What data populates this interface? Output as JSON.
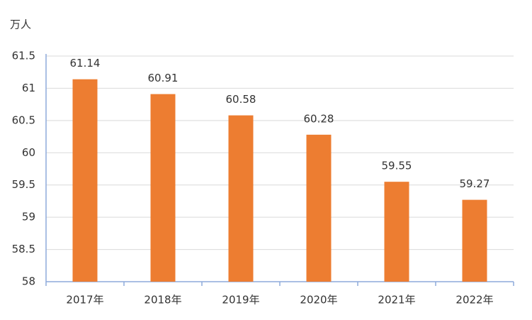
{
  "chart_data": {
    "type": "bar",
    "y_axis_label": "万人",
    "categories": [
      "2017年",
      "2018年",
      "2019年",
      "2020年",
      "2021年",
      "2022年"
    ],
    "values": [
      61.14,
      60.91,
      60.58,
      60.28,
      59.55,
      59.27
    ],
    "color": "#ed7d31",
    "ylim": [
      58,
      61.5
    ],
    "yticks": [
      58,
      58.5,
      59,
      59.5,
      60,
      60.5,
      61,
      61.5
    ],
    "grid": true
  }
}
